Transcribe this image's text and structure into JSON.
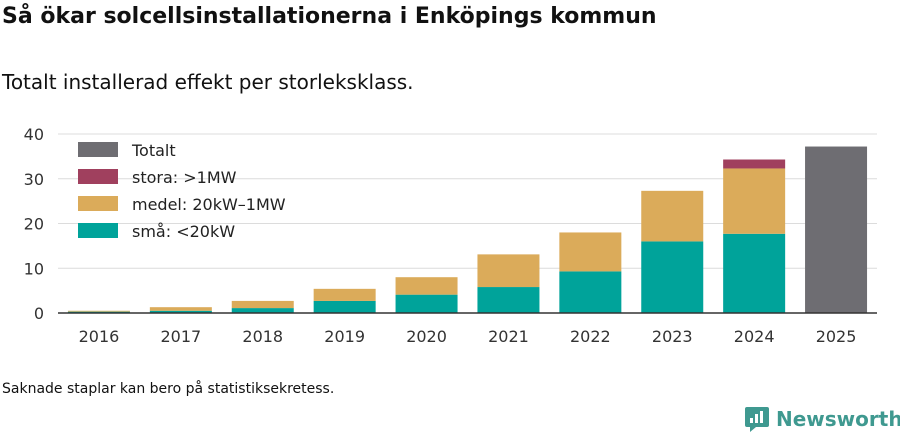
{
  "header": {
    "title": "Så ökar solcellsinstallationerna i Enköpings kommun",
    "subtitle": "Totalt installerad effekt per storleksklass."
  },
  "footnote": "Saknade staplar kan bero på statistiksekretess.",
  "brand": {
    "name": "Newsworthy"
  },
  "chart_data": {
    "type": "bar",
    "stacked": true,
    "title": "Så ökar solcellsinstallationerna i Enköpings kommun",
    "subtitle": "Totalt installerad effekt per storleksklass.",
    "xlabel": "",
    "ylabel": "",
    "ylim": [
      0,
      40
    ],
    "yticks": [
      "0",
      "10",
      "20",
      "30",
      "40"
    ],
    "grid": true,
    "legend_position": "top-left",
    "categories": [
      "2016",
      "2017",
      "2018",
      "2019",
      "2020",
      "2021",
      "2022",
      "2023",
      "2024",
      "2025"
    ],
    "series": [
      {
        "name": "små: <20kW",
        "color": "#00a39a",
        "values": [
          0.3,
          0.5,
          1.1,
          2.7,
          4.1,
          5.8,
          9.3,
          16.0,
          17.7,
          null
        ]
      },
      {
        "name": "medel: 20kW–1MW",
        "color": "#dbab5a",
        "values": [
          0.2,
          0.8,
          1.6,
          2.7,
          3.9,
          7.3,
          8.7,
          11.3,
          14.6,
          null
        ]
      },
      {
        "name": "stora: >1MW",
        "color": "#a0405e",
        "values": [
          0,
          0,
          0,
          0,
          0,
          0,
          0,
          0,
          2.0,
          null
        ]
      },
      {
        "name": "Totalt",
        "color": "#6e6d72",
        "values": [
          null,
          null,
          null,
          null,
          null,
          null,
          null,
          null,
          null,
          37.2
        ]
      }
    ],
    "legend": [
      {
        "name": "Totalt",
        "color": "#6e6d72"
      },
      {
        "name": "stora: >1MW",
        "color": "#a0405e"
      },
      {
        "name": "medel: 20kW–1MW",
        "color": "#dbab5a"
      },
      {
        "name": "små: <20kW",
        "color": "#00a39a"
      }
    ]
  }
}
